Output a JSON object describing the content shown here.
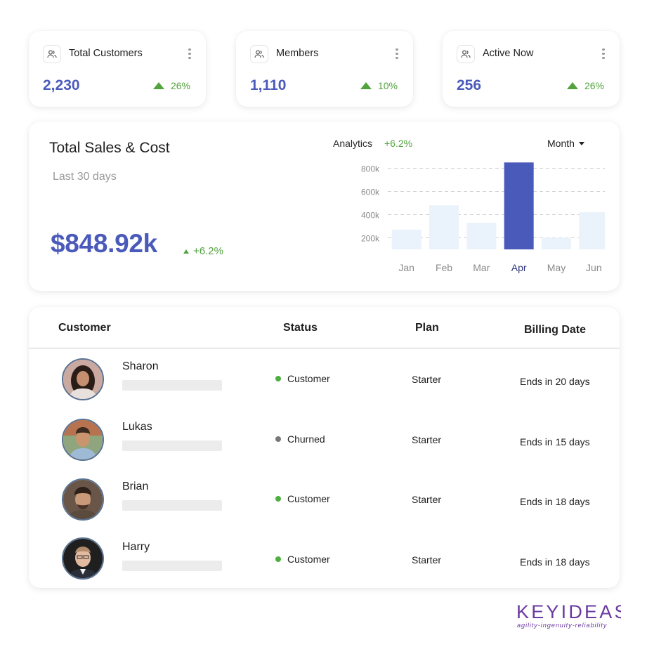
{
  "stats": [
    {
      "title": "Total Customers",
      "value": "2,230",
      "change": "26%"
    },
    {
      "title": "Members",
      "value": "1,110",
      "change": "10%"
    },
    {
      "title": "Active Now",
      "value": "256",
      "change": "26%"
    }
  ],
  "sales": {
    "title": "Total Sales & Cost",
    "period": "Last 30 days",
    "amount": "$848.92k",
    "change": "+6.2%",
    "analytics_label": "Analytics",
    "analytics_change": "+6.2%",
    "range_select": "Month"
  },
  "chart_data": {
    "type": "bar",
    "categories": [
      "Jan",
      "Feb",
      "Mar",
      "Apr",
      "May",
      "Jun"
    ],
    "values": [
      270000,
      480000,
      330000,
      850000,
      200000,
      420000
    ],
    "highlight": "Apr",
    "y_ticks": [
      "200k",
      "400k",
      "600k",
      "800k"
    ],
    "y_tick_values": [
      200000,
      400000,
      600000,
      800000
    ],
    "ylim": [
      100000,
      900000
    ],
    "grid": "dashed horizontal",
    "colors": {
      "bar": "#eaf2fc",
      "highlight": "#4a5abb",
      "highlight_label": "#2d3580",
      "label": "#8a8a8a"
    }
  },
  "table": {
    "headers": {
      "customer": "Customer",
      "status": "Status",
      "plan": "Plan",
      "billing": "Billing Date"
    },
    "rows": [
      {
        "name": "Sharon",
        "status": "Customer",
        "plan": "Starter",
        "billing": "Ends in 20 days",
        "status_color": "#4caf3f"
      },
      {
        "name": "Lukas",
        "status": "Churned",
        "plan": "Starter",
        "billing": "Ends in 15 days",
        "status_color": "#777777"
      },
      {
        "name": "Brian",
        "status": "Customer",
        "plan": "Starter",
        "billing": "Ends in 18 days",
        "status_color": "#4caf3f"
      },
      {
        "name": "Harry",
        "status": "Customer",
        "plan": "Starter",
        "billing": "Ends in 18 days",
        "status_color": "#4caf3f"
      }
    ]
  },
  "logo": {
    "name": "KEYIDEAS",
    "tagline": "agility-ingenuity-reliability"
  },
  "icons": {
    "stat": "users-icon",
    "menu": "more-vertical-icon",
    "trend": "arrow-up-icon"
  },
  "colors": {
    "accent": "#4a5abb",
    "positive": "#52a33e",
    "brand": "#6a3aa0"
  }
}
